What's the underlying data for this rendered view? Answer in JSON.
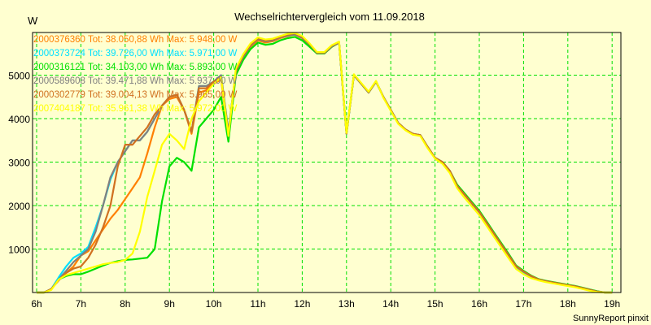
{
  "chart_data": {
    "type": "line",
    "title": "Wechselrichtervergleich vom 11.09.2018",
    "ylabel": "W",
    "xlabel": "",
    "footer": "SunnyReport pinxit",
    "x_start_hour": 6,
    "x_step_minutes": 10,
    "xlim": [
      6,
      19.1
    ],
    "ylim": [
      0,
      6000
    ],
    "xticks": [
      "6h",
      "7h",
      "8h",
      "9h",
      "10h",
      "11h",
      "12h",
      "13h",
      "14h",
      "15h",
      "16h",
      "17h",
      "18h",
      "19h"
    ],
    "yticks": [
      1000,
      2000,
      3000,
      4000,
      5000
    ],
    "grid": true,
    "legend_position": "top-left",
    "series": [
      {
        "name": "2000376360",
        "legend": "2000376360 Tot: 38.050,88 Wh Max: 5.948,00 W",
        "color": "#ff8000",
        "values": [
          0,
          0,
          80,
          300,
          450,
          600,
          850,
          950,
          1200,
          1450,
          1700,
          1900,
          2150,
          2400,
          2650,
          3200,
          3800,
          4300,
          4450,
          4500,
          4200,
          3650,
          4600,
          4650,
          4800,
          4900,
          3600,
          5050,
          5400,
          5650,
          5800,
          5750,
          5780,
          5850,
          5900,
          5930,
          5850,
          5700,
          5500,
          5500,
          5650,
          5750,
          3650,
          5000,
          4800,
          4600,
          4850,
          4500,
          4200,
          3900,
          3750,
          3650,
          3620,
          3350,
          3100,
          3000,
          2800,
          2450,
          2250,
          2050,
          1850,
          1600,
          1350,
          1100,
          850,
          600,
          480,
          380,
          300,
          260,
          230,
          200,
          170,
          140,
          100,
          60,
          20,
          0,
          0
        ]
      },
      {
        "name": "2000373724",
        "legend": "2000373724 Tot: 39.726,00 Wh Max: 5.971,00 W",
        "color": "#00e0ff",
        "values": [
          0,
          0,
          80,
          350,
          600,
          800,
          900,
          1050,
          1500,
          2000,
          2600,
          3000,
          3250,
          3500,
          3500,
          3700,
          4000,
          4300,
          4500,
          4550,
          4200,
          3700,
          4750,
          4750,
          4850,
          5000,
          3700,
          5100,
          5450,
          5700,
          5850,
          5800,
          5820,
          5880,
          5930,
          5960,
          5880,
          5720,
          5520,
          5520,
          5680,
          5760,
          3660,
          5010,
          4810,
          4610,
          4860,
          4500,
          4200,
          3900,
          3750,
          3650,
          3620,
          3350,
          3100,
          3000,
          2800,
          2450,
          2250,
          2050,
          1850,
          1580,
          1330,
          1080,
          830,
          560,
          440,
          350,
          290,
          250,
          220,
          190,
          160,
          130,
          90,
          50,
          20,
          0,
          0
        ]
      },
      {
        "name": "2000316121",
        "legend": "2000316121 Tot: 34.103,00 Wh Max: 5.893,00 W",
        "color": "#00e000",
        "values": [
          0,
          0,
          80,
          300,
          380,
          420,
          420,
          480,
          550,
          620,
          680,
          720,
          750,
          760,
          780,
          800,
          1000,
          2100,
          2900,
          3100,
          3000,
          2800,
          3800,
          4000,
          4200,
          4500,
          3470,
          5000,
          5350,
          5600,
          5750,
          5700,
          5720,
          5800,
          5850,
          5880,
          5800,
          5650,
          5500,
          5500,
          5650,
          5750,
          3650,
          5000,
          4800,
          4600,
          4850,
          4500,
          4200,
          3900,
          3750,
          3650,
          3620,
          3350,
          3100,
          3000,
          2800,
          2480,
          2280,
          2080,
          1880,
          1630,
          1380,
          1130,
          880,
          620,
          500,
          390,
          310,
          270,
          240,
          210,
          180,
          150,
          110,
          70,
          30,
          0,
          0
        ]
      },
      {
        "name": "2000589608",
        "legend": "2000589608 Tot: 39.471,88 Wh Max: 5.937,00 W",
        "color": "#808080",
        "values": [
          0,
          0,
          80,
          300,
          500,
          700,
          850,
          1000,
          1400,
          2000,
          2650,
          3000,
          3250,
          3500,
          3500,
          3700,
          4000,
          4300,
          4500,
          4550,
          4200,
          3700,
          4750,
          4750,
          4850,
          5000,
          3700,
          5080,
          5420,
          5680,
          5830,
          5780,
          5800,
          5870,
          5910,
          5935,
          5860,
          5710,
          5510,
          5510,
          5660,
          5750,
          3650,
          5000,
          4800,
          4600,
          4850,
          4500,
          4200,
          3900,
          3750,
          3650,
          3620,
          3350,
          3100,
          3000,
          2800,
          2450,
          2250,
          2050,
          1850,
          1600,
          1350,
          1100,
          850,
          600,
          480,
          380,
          300,
          260,
          230,
          200,
          170,
          140,
          100,
          60,
          20,
          0,
          0
        ]
      },
      {
        "name": "2000302779",
        "legend": "2000302779 Tot: 39.004,13 Wh Max: 5.965,00 W",
        "color": "#d07020",
        "values": [
          0,
          0,
          80,
          280,
          450,
          550,
          600,
          800,
          1100,
          1500,
          2000,
          2900,
          3400,
          3400,
          3600,
          3800,
          4100,
          4300,
          4500,
          4550,
          4200,
          3700,
          4700,
          4700,
          4850,
          4950,
          3650,
          5100,
          5450,
          5700,
          5850,
          5800,
          5820,
          5880,
          5930,
          5960,
          5880,
          5720,
          5520,
          5520,
          5680,
          5760,
          3660,
          5010,
          4810,
          4610,
          4860,
          4500,
          4200,
          3900,
          3750,
          3650,
          3620,
          3350,
          3100,
          3000,
          2800,
          2450,
          2250,
          2050,
          1850,
          1600,
          1350,
          1100,
          850,
          600,
          480,
          380,
          300,
          260,
          230,
          200,
          170,
          140,
          100,
          60,
          20,
          0,
          0
        ]
      },
      {
        "name": "2007404187",
        "legend": "2007404187 Tot: 35.961,38 Wh Max: 5.972,00 W",
        "color": "#ffff00",
        "values": [
          0,
          0,
          60,
          300,
          400,
          450,
          500,
          550,
          600,
          650,
          680,
          700,
          750,
          900,
          1400,
          2200,
          2800,
          3400,
          3650,
          3500,
          3300,
          4000,
          4400,
          4600,
          4800,
          4950,
          3600,
          5150,
          5480,
          5730,
          5870,
          5820,
          5840,
          5900,
          5950,
          5970,
          5900,
          5730,
          5530,
          5530,
          5690,
          5770,
          3670,
          5020,
          4820,
          4620,
          4870,
          4480,
          4180,
          3880,
          3730,
          3630,
          3600,
          3320,
          3080,
          2960,
          2750,
          2400,
          2180,
          1980,
          1780,
          1530,
          1280,
          1030,
          780,
          540,
          420,
          330,
          280,
          240,
          210,
          180,
          150,
          120,
          80,
          40,
          10,
          0,
          0
        ]
      }
    ]
  }
}
